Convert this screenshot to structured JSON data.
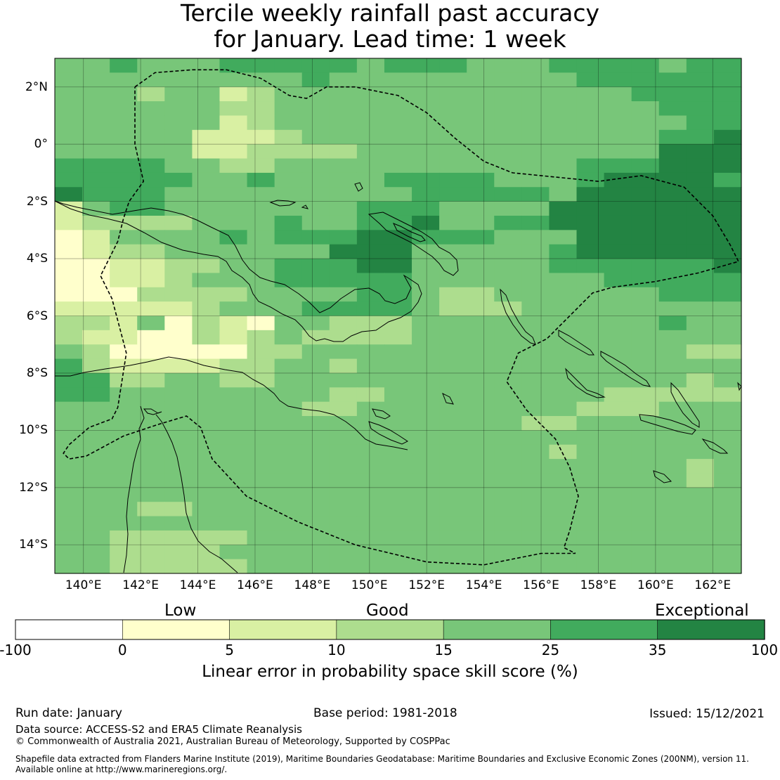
{
  "title": {
    "line1": "Tercile weekly rainfall past accuracy",
    "line2": "for January. Lead time: 1 week"
  },
  "map": {
    "lon_range": [
      139,
      163
    ],
    "lat_range": [
      -15,
      3
    ],
    "x_ticks": [
      {
        "value": 140,
        "label": "140°E"
      },
      {
        "value": 142,
        "label": "142°E"
      },
      {
        "value": 144,
        "label": "144°E"
      },
      {
        "value": 146,
        "label": "146°E"
      },
      {
        "value": 148,
        "label": "148°E"
      },
      {
        "value": 150,
        "label": "150°E"
      },
      {
        "value": 152,
        "label": "152°E"
      },
      {
        "value": 154,
        "label": "154°E"
      },
      {
        "value": 156,
        "label": "156°E"
      },
      {
        "value": 158,
        "label": "158°E"
      },
      {
        "value": 160,
        "label": "160°E"
      },
      {
        "value": 162,
        "label": "162°E"
      }
    ],
    "y_ticks": [
      {
        "value": 2,
        "label": "2°N"
      },
      {
        "value": 0,
        "label": "0°"
      },
      {
        "value": -2,
        "label": "2°S"
      },
      {
        "value": -4,
        "label": "4°S"
      },
      {
        "value": -6,
        "label": "6°S"
      },
      {
        "value": -8,
        "label": "8°S"
      },
      {
        "value": -10,
        "label": "10°S"
      },
      {
        "value": -12,
        "label": "12°S"
      },
      {
        "value": -14,
        "label": "14°S"
      }
    ],
    "skill_grid_rows": [
      "4454445555545554445555455",
      "4444444445444444444555555",
      "4443442344444444444445555",
      "4444443344444444444444555",
      "4444442344444444444444455",
      "4444422234444444444444556",
      "4444422333344444444444666",
      "5555443344444444444555666",
      "5555544544445555444566665",
      "6555444444444555554666666",
      "2455444444455544446666666",
      "2333344454455644556666666",
      "1244445455566555444666666",
      "1233444444666444445666666",
      "1122334455566444445555556",
      "1122344455555444444455555",
      "1113333444455433444444555",
      "2222234445555433344444444",
      "3324132144333444444444544",
      "3221132343333444444444444",
      "4311111334444444444444433",
      "5322223344344444444444444",
      "5533443344444444444444434",
      "5544444444334444444433333",
      "4444444443344444444333444",
      "4444444444444444433444444",
      "4444444444444444444444444",
      "4444444444444444443444444",
      "4444444444444444444444434",
      "4444444444444444444444434",
      "4444444444444444444444444",
      "4443344444444444444444444",
      "4444444444444444444444444",
      "4433333444444444444444444",
      "4433334444444444444444444",
      "4433333444444444444444444"
    ],
    "eez_boundary": [
      [
        141.8,
        2.0
      ],
      [
        142.5,
        2.5
      ],
      [
        143.8,
        2.6
      ],
      [
        145.0,
        2.6
      ],
      [
        146.2,
        2.3
      ],
      [
        147.2,
        1.7
      ],
      [
        147.8,
        1.6
      ],
      [
        148.5,
        2.0
      ],
      [
        149.5,
        2.0
      ],
      [
        151.0,
        1.7
      ],
      [
        152.0,
        1.1
      ],
      [
        153.0,
        0.2
      ],
      [
        154.0,
        -0.6
      ],
      [
        155.0,
        -1.0
      ],
      [
        157.0,
        -1.2
      ],
      [
        158.0,
        -1.3
      ],
      [
        159.5,
        -1.1
      ],
      [
        161.0,
        -1.5
      ],
      [
        162.0,
        -2.5
      ],
      [
        162.6,
        -3.5
      ],
      [
        162.9,
        -4.1
      ],
      [
        161.5,
        -4.5
      ],
      [
        160.0,
        -4.8
      ],
      [
        158.5,
        -5.0
      ],
      [
        157.8,
        -5.2
      ],
      [
        156.2,
        -6.8
      ],
      [
        155.2,
        -7.3
      ],
      [
        154.8,
        -8.3
      ],
      [
        155.5,
        -9.3
      ],
      [
        156.5,
        -10.3
      ],
      [
        157.0,
        -11.3
      ],
      [
        157.3,
        -12.3
      ],
      [
        157.0,
        -13.5
      ],
      [
        156.8,
        -14.1
      ],
      [
        157.2,
        -14.3
      ],
      [
        156.0,
        -14.3
      ],
      [
        154.0,
        -14.7
      ],
      [
        152.0,
        -14.6
      ],
      [
        149.5,
        -14.0
      ],
      [
        147.5,
        -13.2
      ],
      [
        145.7,
        -12.3
      ],
      [
        144.5,
        -11.0
      ],
      [
        144.1,
        -9.9
      ],
      [
        143.6,
        -9.5
      ],
      [
        142.6,
        -9.8
      ],
      [
        141.4,
        -10.2
      ],
      [
        140.1,
        -10.9
      ],
      [
        139.5,
        -11.0
      ],
      [
        139.3,
        -10.8
      ],
      [
        139.5,
        -10.5
      ],
      [
        140.2,
        -9.9
      ],
      [
        141.0,
        -9.6
      ],
      [
        141.2,
        -9.2
      ],
      [
        141.5,
        -7.3
      ],
      [
        141.0,
        -5.4
      ],
      [
        140.6,
        -4.6
      ],
      [
        141.2,
        -3.4
      ],
      [
        141.4,
        -2.6
      ],
      [
        141.6,
        -2.0
      ],
      [
        142.1,
        -1.3
      ],
      [
        141.8,
        0.0
      ],
      [
        141.8,
        1.0
      ],
      [
        141.8,
        2.0
      ]
    ]
  },
  "colorbar": {
    "categories": {
      "low": "Low",
      "good": "Good",
      "exceptional": "Exceptional"
    },
    "bounds": [
      "-100",
      "0",
      "5",
      "10",
      "15",
      "25",
      "35",
      "100"
    ],
    "colors": [
      "#ffffff",
      "#ffffcc",
      "#d9f0a3",
      "#addd8e",
      "#78c679",
      "#41ab5d",
      "#238443"
    ],
    "label": "Linear error in probability space skill score (%)"
  },
  "footer": {
    "run_date": "Run date: January",
    "base_period": "Base period: 1981-2018",
    "issued": "Issued: 15/12/2021",
    "data_source": "Data source: ACCESS-S2 and ERA5 Climate Reanalysis",
    "copyright": "© Commonwealth of Australia 2021, Australian Bureau of Meteorology, Supported by COSPPac",
    "shapefile_line1": "Shapefile data extracted from Flanders Marine Institute (2019), Maritime Boundaries Geodatabase: Maritime Boundaries and Exclusive Economic Zones (200NM), version 11.",
    "shapefile_line2": "Available online at http://www.marineregions.org/."
  }
}
